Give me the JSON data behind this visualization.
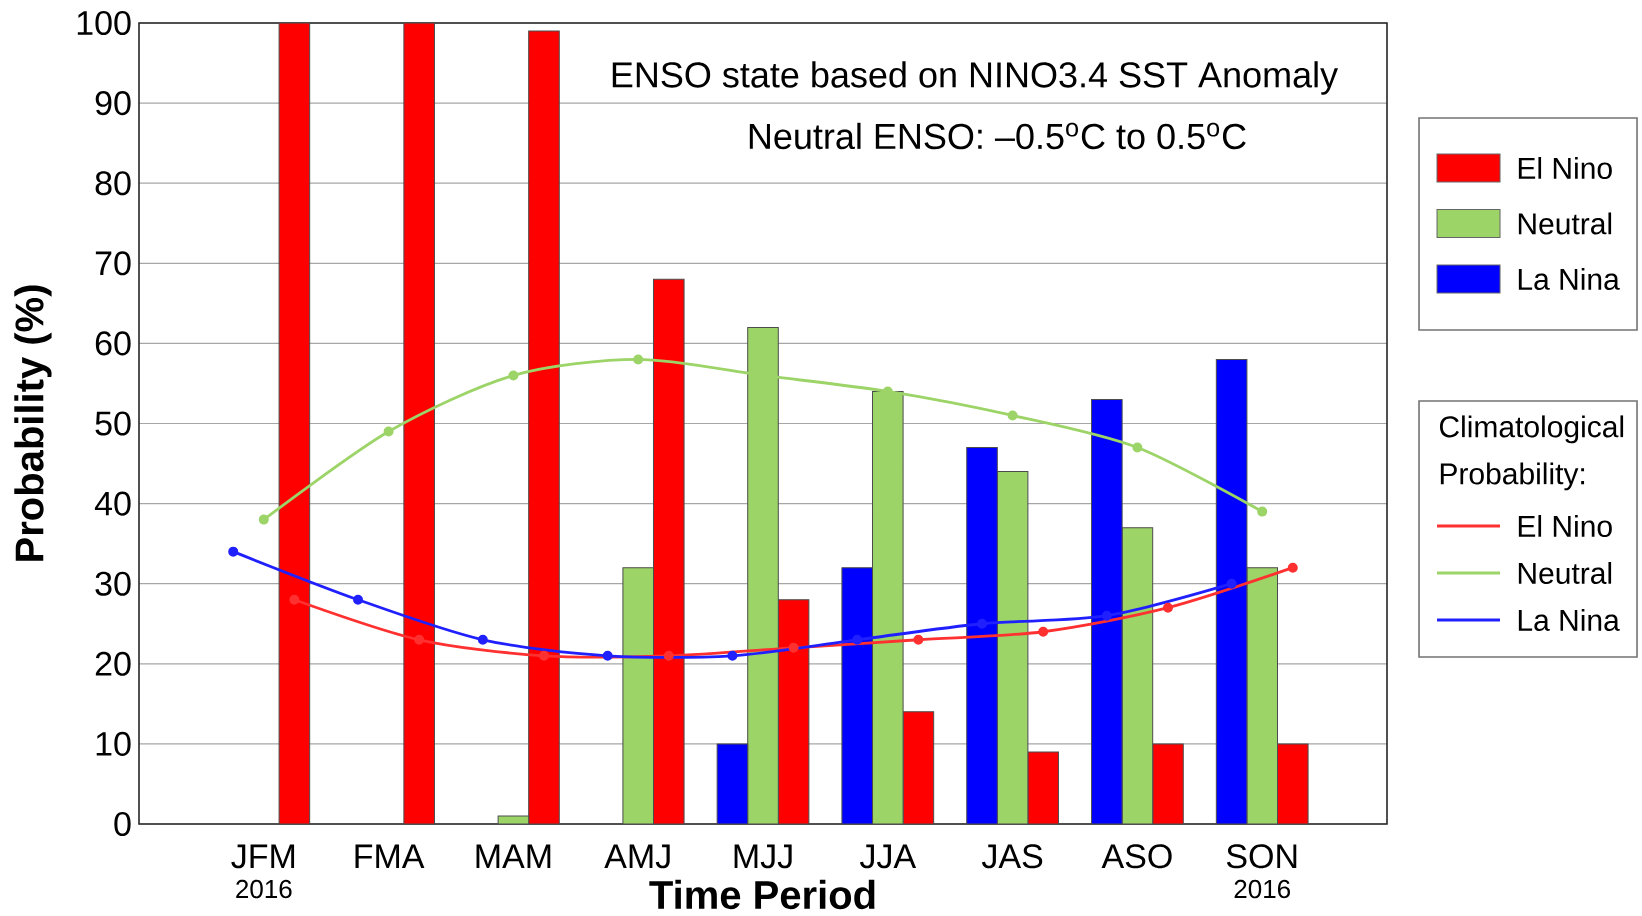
{
  "chart_data": {
    "type": "bar",
    "title": "ENSO state based on NINO3.4 SST Anomaly",
    "subtitle": "Neutral ENSO: –0.5$^{o}$C to 0.5$^{o}$C",
    "xlabel": "Time Period",
    "ylabel": "Probability (%)",
    "legend_title": "Climatological Probability:",
    "categories": [
      "JFM",
      "FMA",
      "MAM",
      "AMJ",
      "MJJ",
      "JJA",
      "JAS",
      "ASO",
      "SON"
    ],
    "series": [
      {
        "name": "El Nino",
        "color": "#ff0000",
        "values": [
          100,
          100,
          99,
          68,
          28,
          14,
          9,
          10,
          10
        ]
      },
      {
        "name": "Neutral",
        "color": "#9cd468",
        "values": [
          0,
          0,
          1,
          32,
          62,
          54,
          44,
          37,
          32
        ]
      },
      {
        "name": "La Nina",
        "color": "#0000ff",
        "values": [
          0,
          0,
          0,
          0,
          10,
          32,
          47,
          53,
          58
        ]
      },
      {
        "name": "El Nino",
        "type": "line",
        "color": "#ff3030",
        "values": [
          28,
          23,
          21,
          21,
          22,
          23,
          24,
          27,
          32
        ]
      },
      {
        "name": "Neutral",
        "type": "line",
        "color": "#9cd468",
        "values": [
          38,
          49,
          56,
          58,
          56,
          54,
          51,
          47,
          39
        ]
      },
      {
        "name": "La Nina",
        "type": "line",
        "color": "#2020ff",
        "values": [
          34,
          28,
          23,
          21,
          21,
          23,
          25,
          26,
          30
        ]
      }
    ],
    "ylim": [
      0,
      100
    ],
    "yticks": [
      0,
      10,
      20,
      30,
      40,
      50,
      60,
      70,
      80,
      90,
      100
    ],
    "grid": "y",
    "legend": "right",
    "marker": "circle",
    "line_style": "solid",
    "annotations": [
      "2016",
      "2016"
    ]
  }
}
